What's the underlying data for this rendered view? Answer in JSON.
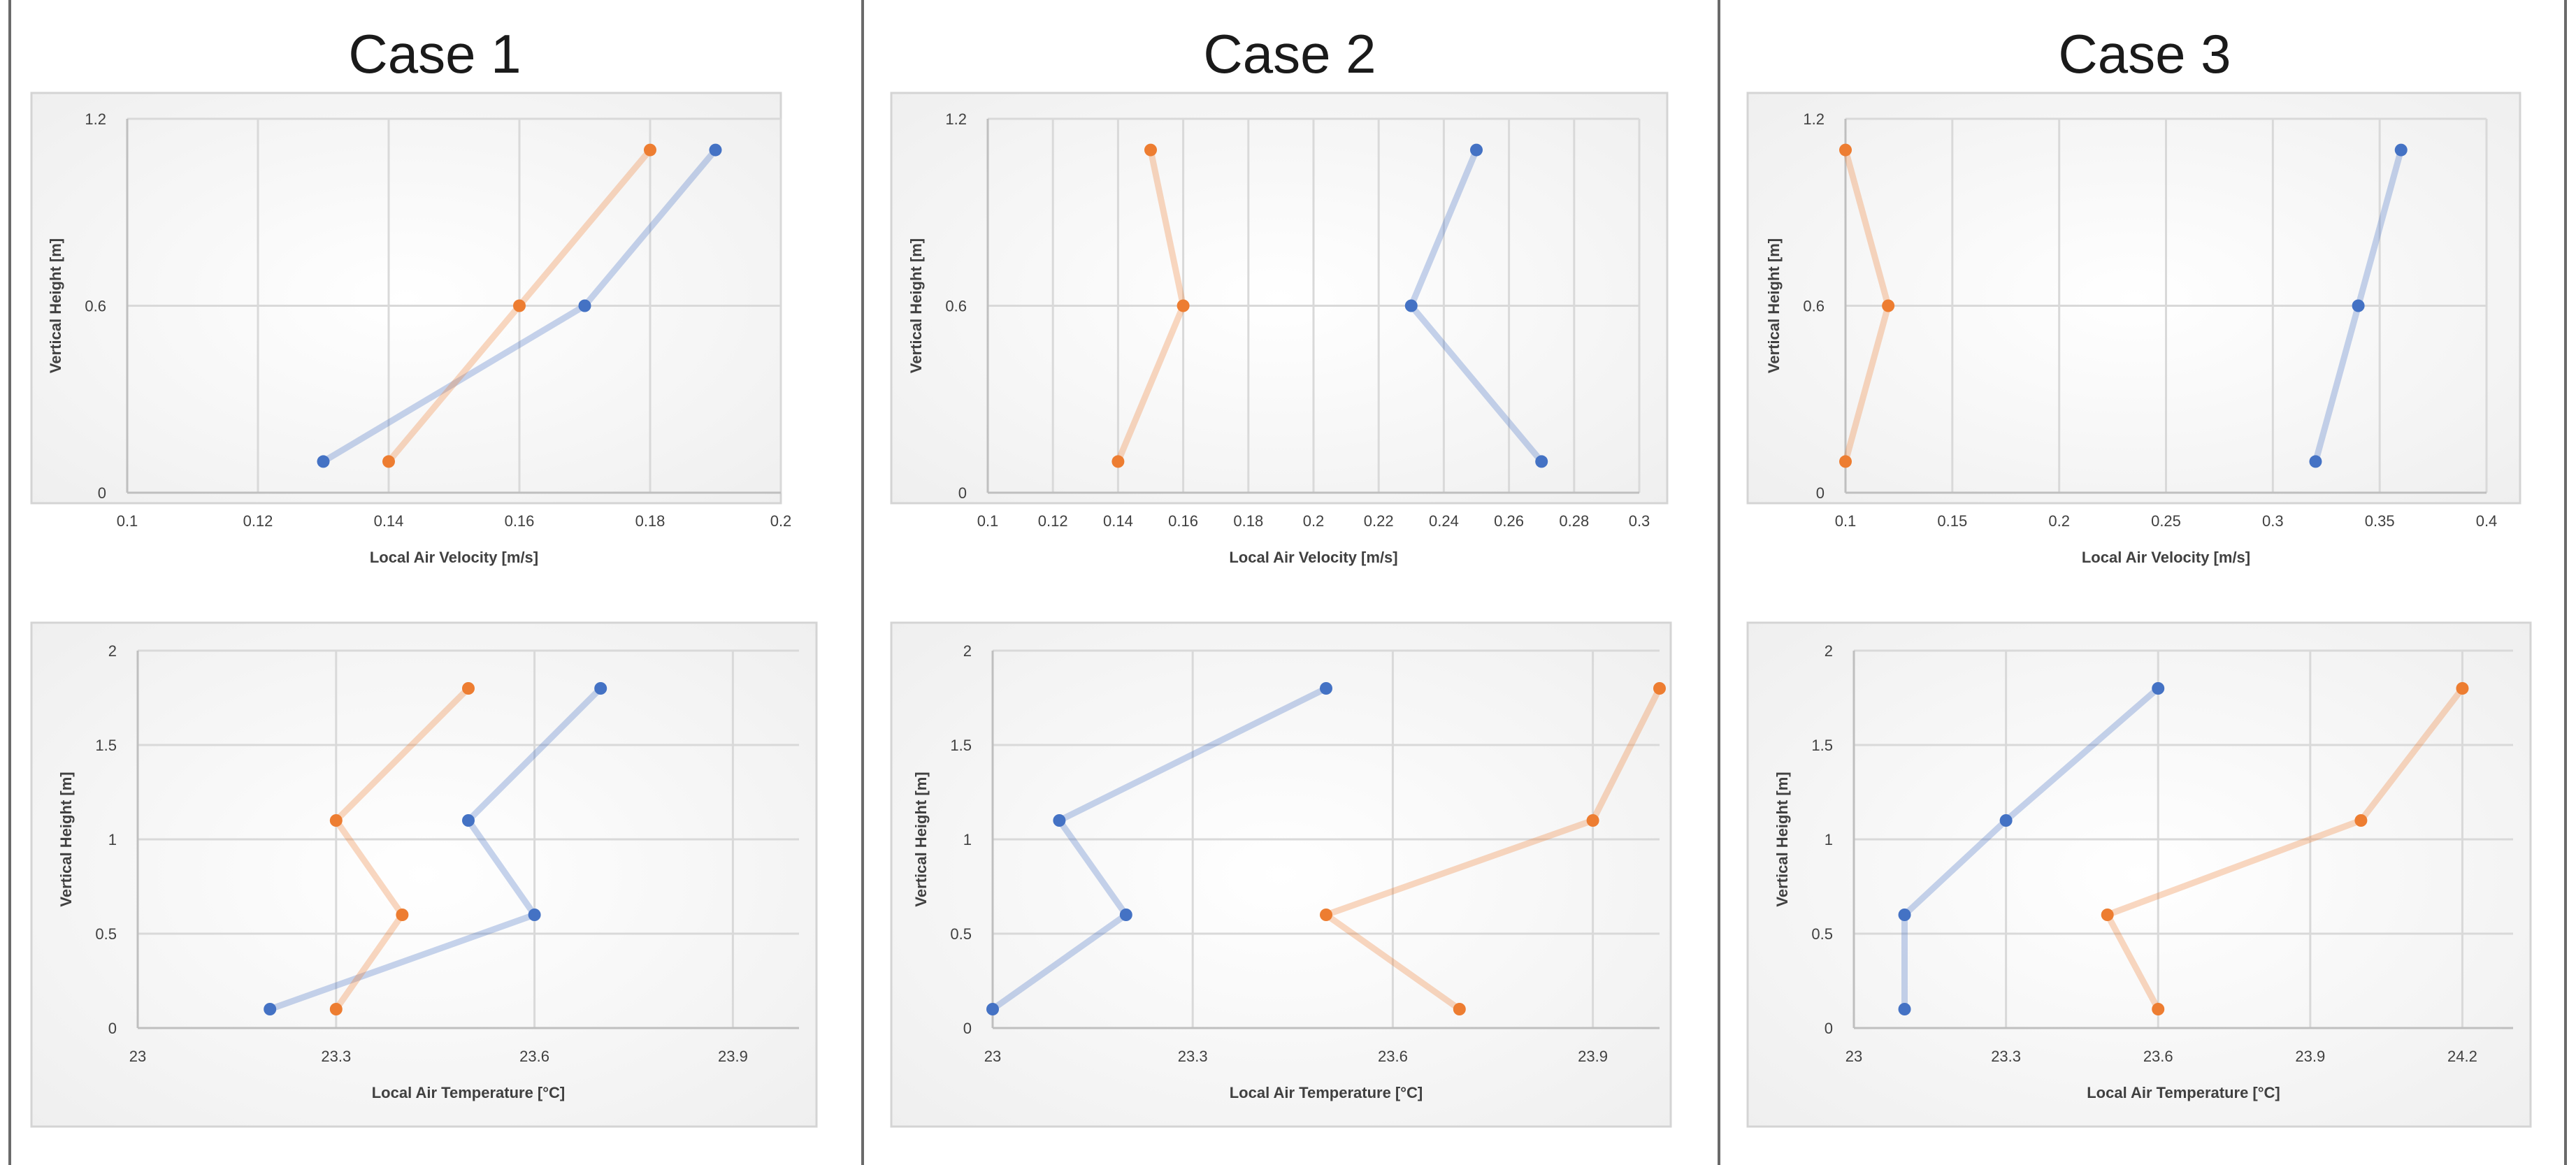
{
  "colors": {
    "series_a": "#4472c4",
    "series_b": "#ed7d31"
  },
  "cases": [
    "Case 1",
    "Case 2",
    "Case 3"
  ],
  "chart_data": [
    {
      "type": "scatter",
      "case": "Case 1",
      "row": "velocity",
      "xlabel": "Local Air Velocity [m/s]",
      "ylabel": "Vertical Height [m]",
      "xlim": [
        0.1,
        0.2
      ],
      "ylim": [
        0,
        1.2
      ],
      "xticks": [
        "0.1",
        "0.12",
        "0.14",
        "0.16",
        "0.18",
        "0.2"
      ],
      "yticks": [
        "0",
        "0.6",
        "1.2"
      ],
      "series": [
        {
          "name": "blue",
          "x": [
            0.13,
            0.17,
            0.19
          ],
          "y": [
            0.1,
            0.6,
            1.1
          ]
        },
        {
          "name": "orange",
          "x": [
            0.14,
            0.16,
            0.18
          ],
          "y": [
            0.1,
            0.6,
            1.1
          ]
        }
      ]
    },
    {
      "type": "scatter",
      "case": "Case 2",
      "row": "velocity",
      "xlabel": "Local Air Velocity [m/s]",
      "ylabel": "Vertical Height [m]",
      "xlim": [
        0.1,
        0.3
      ],
      "ylim": [
        0,
        1.2
      ],
      "xticks": [
        "0.1",
        "0.12",
        "0.14",
        "0.16",
        "0.18",
        "0.2",
        "0.22",
        "0.24",
        "0.26",
        "0.28",
        "0.3"
      ],
      "yticks": [
        "0",
        "0.6",
        "1.2"
      ],
      "series": [
        {
          "name": "blue",
          "x": [
            0.27,
            0.23,
            0.25
          ],
          "y": [
            0.1,
            0.6,
            1.1
          ]
        },
        {
          "name": "orange",
          "x": [
            0.14,
            0.16,
            0.15
          ],
          "y": [
            0.1,
            0.6,
            1.1
          ]
        }
      ]
    },
    {
      "type": "scatter",
      "case": "Case 3",
      "row": "velocity",
      "xlabel": "Local Air Velocity [m/s]",
      "ylabel": "Vertical Height [m]",
      "xlim": [
        0.1,
        0.4
      ],
      "ylim": [
        0,
        1.2
      ],
      "xticks": [
        "0.1",
        "0.15",
        "0.2",
        "0.25",
        "0.3",
        "0.35",
        "0.4"
      ],
      "yticks": [
        "0",
        "0.6",
        "1.2"
      ],
      "series": [
        {
          "name": "blue",
          "x": [
            0.32,
            0.34,
            0.36
          ],
          "y": [
            0.1,
            0.6,
            1.1
          ]
        },
        {
          "name": "orange",
          "x": [
            0.1,
            0.12,
            0.1
          ],
          "y": [
            0.1,
            0.6,
            1.1
          ]
        }
      ]
    },
    {
      "type": "scatter",
      "case": "Case 1",
      "row": "temperature",
      "xlabel": "Local Air Temperature [°C]",
      "ylabel": "Vertical Height [m]",
      "xlim": [
        23,
        24
      ],
      "ylim": [
        0,
        2
      ],
      "xticks": [
        "23",
        "23.3",
        "23.6",
        "23.9"
      ],
      "yticks": [
        "0",
        "0.5",
        "1",
        "1.5",
        "2"
      ],
      "series": [
        {
          "name": "blue",
          "x": [
            23.2,
            23.6,
            23.5,
            23.7
          ],
          "y": [
            0.1,
            0.6,
            1.1,
            1.8
          ]
        },
        {
          "name": "orange",
          "x": [
            23.3,
            23.4,
            23.3,
            23.5
          ],
          "y": [
            0.1,
            0.6,
            1.1,
            1.8
          ]
        }
      ]
    },
    {
      "type": "scatter",
      "case": "Case 2",
      "row": "temperature",
      "xlabel": "Local Air Temperature [°C]",
      "ylabel": "Vertical Height [m]",
      "xlim": [
        23,
        24
      ],
      "ylim": [
        0,
        2
      ],
      "xticks": [
        "23",
        "23.3",
        "23.6",
        "23.9"
      ],
      "yticks": [
        "0",
        "0.5",
        "1",
        "1.5",
        "2"
      ],
      "series": [
        {
          "name": "blue",
          "x": [
            23.0,
            23.2,
            23.1,
            23.5
          ],
          "y": [
            0.1,
            0.6,
            1.1,
            1.8
          ]
        },
        {
          "name": "orange",
          "x": [
            23.7,
            23.5,
            23.9,
            24.0
          ],
          "y": [
            0.1,
            0.6,
            1.1,
            1.8
          ]
        }
      ]
    },
    {
      "type": "scatter",
      "case": "Case 3",
      "row": "temperature",
      "xlabel": "Local Air Temperature [°C]",
      "ylabel": "Vertical Height [m]",
      "xlim": [
        23,
        24.3
      ],
      "ylim": [
        0,
        2
      ],
      "xticks": [
        "23",
        "23.3",
        "23.6",
        "23.9",
        "24.2"
      ],
      "yticks": [
        "0",
        "0.5",
        "1",
        "1.5",
        "2"
      ],
      "series": [
        {
          "name": "blue",
          "x": [
            23.1,
            23.1,
            23.3,
            23.6
          ],
          "y": [
            0.1,
            0.6,
            1.1,
            1.8
          ]
        },
        {
          "name": "orange",
          "x": [
            23.6,
            23.5,
            24.0,
            24.2
          ],
          "y": [
            0.1,
            0.6,
            1.1,
            1.8
          ]
        }
      ]
    }
  ]
}
